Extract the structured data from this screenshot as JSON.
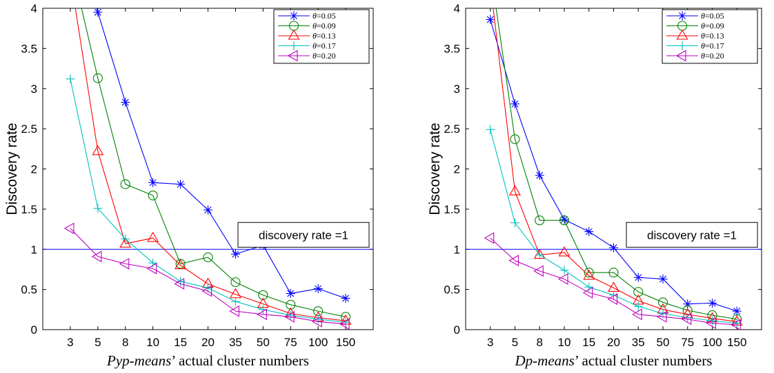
{
  "chart_data": [
    {
      "type": "line",
      "categories": [
        "3",
        "5",
        "8",
        "10",
        "15",
        "20",
        "35",
        "50",
        "75",
        "100",
        "150"
      ],
      "ylabel": "Discovery rate",
      "xlabel_italic": "Pyp-means",
      "xlabel_rest": "’ actual cluster numbers",
      "ylim": [
        0,
        4
      ],
      "yticks": [
        "0",
        "0.5",
        "1",
        "1.5",
        "2",
        "2.5",
        "3",
        "3.5",
        "4"
      ],
      "legend_position": "top-right",
      "reference_line": {
        "y": 1,
        "label": "discovery rate =1"
      },
      "series": [
        {
          "name": "θ=0.05",
          "theta": "0.05",
          "color": "#0000ff",
          "marker": "star",
          "values": [
            null,
            3.95,
            2.83,
            1.83,
            1.81,
            1.49,
            0.94,
            1.05,
            0.45,
            0.51,
            0.39
          ]
        },
        {
          "name": "θ=0.09",
          "theta": "0.09",
          "color": "#008000",
          "marker": "circle",
          "values": [
            null,
            3.13,
            1.81,
            1.67,
            0.82,
            0.9,
            0.59,
            0.43,
            0.31,
            0.23,
            0.16
          ]
        },
        {
          "name": "θ=0.13",
          "theta": "0.13",
          "color": "#ff0000",
          "marker": "triangle-up",
          "values": [
            null,
            2.22,
            1.07,
            1.14,
            0.8,
            0.57,
            0.44,
            0.32,
            0.2,
            0.15,
            0.11
          ]
        },
        {
          "name": "θ=0.17",
          "theta": "0.17",
          "color": "#00bfbf",
          "marker": "plus",
          "values": [
            3.12,
            1.51,
            1.13,
            0.83,
            0.6,
            0.52,
            0.35,
            0.25,
            0.18,
            0.13,
            0.09
          ]
        },
        {
          "name": "θ=0.20",
          "theta": "0.20",
          "color": "#bf00bf",
          "marker": "triangle-left",
          "values": [
            1.26,
            0.91,
            0.82,
            0.76,
            0.57,
            0.48,
            0.23,
            0.19,
            0.16,
            0.1,
            0.07
          ]
        }
      ],
      "offscale_lead": [
        {
          "series": "θ=0.05",
          "from_y": 5.2
        },
        {
          "series": "θ=0.09",
          "from_y": 4.6
        },
        {
          "series": "θ=0.13",
          "from_y": 4.4
        }
      ]
    },
    {
      "type": "line",
      "categories": [
        "3",
        "5",
        "8",
        "10",
        "15",
        "20",
        "35",
        "50",
        "75",
        "100",
        "150"
      ],
      "ylabel": "Discovery rate",
      "xlabel_italic": "Dp-means",
      "xlabel_rest": "’ actual cluster numbers",
      "ylim": [
        0,
        4
      ],
      "yticks": [
        "0",
        "0.5",
        "1",
        "1.5",
        "2",
        "2.5",
        "3",
        "3.5",
        "4"
      ],
      "legend_position": "top-right",
      "reference_line": {
        "y": 1,
        "label": "discovery rate =1"
      },
      "series": [
        {
          "name": "θ=0.05",
          "theta": "0.05",
          "color": "#0000ff",
          "marker": "star",
          "values": [
            3.86,
            2.81,
            1.92,
            1.37,
            1.22,
            1.02,
            0.65,
            0.63,
            0.32,
            0.33,
            0.23
          ]
        },
        {
          "name": "θ=0.09",
          "theta": "0.09",
          "color": "#008000",
          "marker": "circle",
          "values": [
            null,
            2.37,
            1.36,
            1.36,
            0.71,
            0.71,
            0.47,
            0.34,
            0.24,
            0.18,
            0.13
          ]
        },
        {
          "name": "θ=0.13",
          "theta": "0.13",
          "color": "#ff0000",
          "marker": "triangle-up",
          "values": [
            null,
            1.72,
            0.93,
            0.96,
            0.67,
            0.52,
            0.36,
            0.25,
            0.19,
            0.14,
            0.1
          ]
        },
        {
          "name": "θ=0.17",
          "theta": "0.17",
          "color": "#00bfbf",
          "marker": "plus",
          "values": [
            2.49,
            1.33,
            0.93,
            0.74,
            0.53,
            0.43,
            0.29,
            0.2,
            0.15,
            0.11,
            0.08
          ]
        },
        {
          "name": "θ=0.20",
          "theta": "0.20",
          "color": "#bf00bf",
          "marker": "triangle-left",
          "values": [
            1.14,
            0.86,
            0.73,
            0.63,
            0.46,
            0.38,
            0.19,
            0.16,
            0.13,
            0.08,
            0.06
          ]
        }
      ],
      "offscale_lead": [
        {
          "series": "θ=0.09",
          "from_y": 4.5
        },
        {
          "series": "θ=0.13",
          "from_y": 4.3
        }
      ]
    }
  ]
}
